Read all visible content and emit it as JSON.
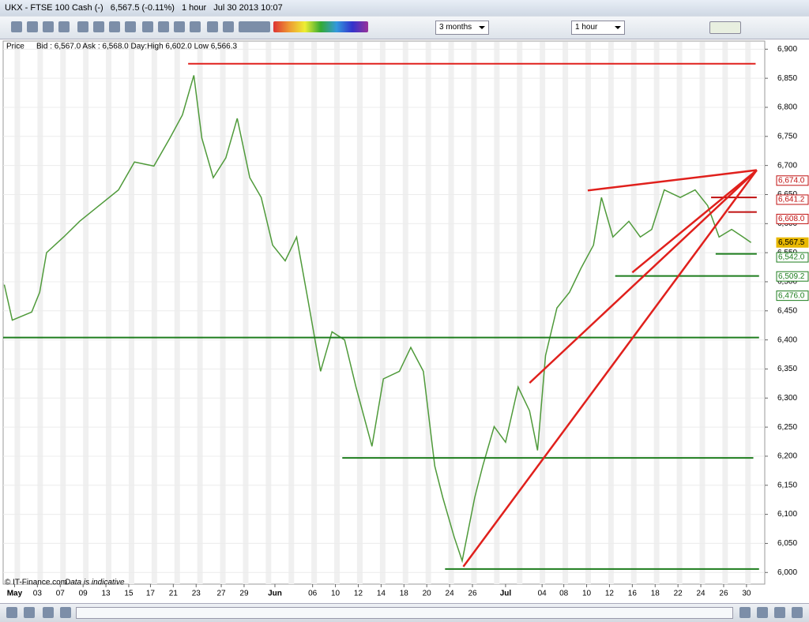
{
  "window": {
    "instrument": "UKX - FTSE 100 Cash (-)",
    "quote": "6,567.5 (-0.11%)",
    "interval": "1 hour",
    "timestamp": "Jul 30 2013 10:07",
    "range_select": "3 months",
    "interval_select": "1 hour",
    "info": "Bid : 6,567.0 Ask : 6,568.0 Day:High 6,602.0 Low 6,566.3",
    "footer": "© IT-Finance.com",
    "disclaimer": "Data is indicative"
  },
  "chart_data": {
    "type": "line",
    "x": [
      -0.9,
      -0.2,
      1.5,
      2.2,
      2.8,
      4.3,
      5.7,
      7.4,
      9.1,
      10.5,
      12.2,
      13.6,
      14.7,
      15.7,
      16.4,
      17.4,
      18.5,
      19.5,
      20.6,
      21.6,
      22.6,
      23.7,
      24.7,
      25.7,
      26.8,
      27.8,
      28.9,
      29.9,
      31.3,
      32.3,
      33.7,
      34.7,
      35.8,
      36.8,
      37.5,
      38.5,
      39.2,
      40.3,
      41.0,
      42.0,
      43.0,
      44.1,
      45.1,
      45.8,
      46.5,
      47.5,
      48.6,
      49.6,
      50.7,
      51.4,
      52.4,
      53.8,
      54.8,
      55.8,
      56.9,
      58.3,
      59.6,
      60.7,
      61.7,
      62.8,
      63.8,
      64.5
    ],
    "series": [
      {
        "name": "Price",
        "color": "#4f9a3a",
        "values": [
          6495,
          6434,
          6448,
          6482,
          6550,
          6577,
          6604,
          6631,
          6658,
          6706,
          6699,
          6747,
          6787,
          6855,
          6747,
          6679,
          6713,
          6781,
          6679,
          6645,
          6563,
          6536,
          6577,
          6468,
          6346,
          6414,
          6400,
          6319,
          6217,
          6333,
          6346,
          6387,
          6346,
          6183,
          6129,
          6061,
          6020,
          6129,
          6183,
          6251,
          6224,
          6319,
          6278,
          6210,
          6373,
          6455,
          6482,
          6523,
          6563,
          6645,
          6577,
          6604,
          6577,
          6590,
          6658,
          6645,
          6658,
          6631,
          6577,
          6590,
          6577,
          6567.5
        ]
      }
    ],
    "xlim": [
      -1.0,
      65.7
    ],
    "xticks": [
      {
        "value": 0,
        "label": "May"
      },
      {
        "value": 2.0,
        "label": "03"
      },
      {
        "value": 4.0,
        "label": "07"
      },
      {
        "value": 6.0,
        "label": "09"
      },
      {
        "value": 8.0,
        "label": "13"
      },
      {
        "value": 10.0,
        "label": "15"
      },
      {
        "value": 11.9,
        "label": "17"
      },
      {
        "value": 13.9,
        "label": "21"
      },
      {
        "value": 15.9,
        "label": "23"
      },
      {
        "value": 18.1,
        "label": "27"
      },
      {
        "value": 20.1,
        "label": "29"
      },
      {
        "value": 22.8,
        "label": "Jun"
      },
      {
        "value": 26.1,
        "label": "06"
      },
      {
        "value": 28.1,
        "label": "10"
      },
      {
        "value": 30.1,
        "label": "12"
      },
      {
        "value": 32.1,
        "label": "14"
      },
      {
        "value": 34.1,
        "label": "18"
      },
      {
        "value": 36.1,
        "label": "20"
      },
      {
        "value": 38.1,
        "label": "24"
      },
      {
        "value": 40.1,
        "label": "26"
      },
      {
        "value": 43.0,
        "label": "Jul"
      },
      {
        "value": 46.2,
        "label": "04"
      },
      {
        "value": 48.1,
        "label": "08"
      },
      {
        "value": 50.1,
        "label": "10"
      },
      {
        "value": 52.1,
        "label": "12"
      },
      {
        "value": 54.1,
        "label": "16"
      },
      {
        "value": 56.1,
        "label": "18"
      },
      {
        "value": 58.1,
        "label": "22"
      },
      {
        "value": 60.1,
        "label": "24"
      },
      {
        "value": 62.1,
        "label": "26"
      },
      {
        "value": 64.1,
        "label": "30"
      }
    ],
    "ylim": [
      5980,
      6914
    ],
    "yticks": [
      {
        "value": 6000,
        "label": "6,000"
      },
      {
        "value": 6050,
        "label": "6,050"
      },
      {
        "value": 6100,
        "label": "6,100"
      },
      {
        "value": 6150,
        "label": "6,150"
      },
      {
        "value": 6200,
        "label": "6,200"
      },
      {
        "value": 6250,
        "label": "6,250"
      },
      {
        "value": 6300,
        "label": "6,300"
      },
      {
        "value": 6350,
        "label": "6,350"
      },
      {
        "value": 6400,
        "label": "6,400"
      },
      {
        "value": 6450,
        "label": "6,450"
      },
      {
        "value": 6500,
        "label": "6,500"
      },
      {
        "value": 6550,
        "label": "6,550"
      },
      {
        "value": 6600,
        "label": "6,600"
      },
      {
        "value": 6650,
        "label": "6,650"
      },
      {
        "value": 6700,
        "label": "6,700"
      },
      {
        "value": 6750,
        "label": "6,750"
      },
      {
        "value": 6800,
        "label": "6,800"
      },
      {
        "value": 6850,
        "label": "6,850"
      },
      {
        "value": 6900,
        "label": "6,900"
      }
    ],
    "hlines": [
      {
        "value": 6875,
        "x": [
          15.2,
          64.9
        ],
        "color": "#e0201c"
      },
      {
        "value": 6404,
        "x": [
          -1.0,
          65.2
        ],
        "color": "#1d7d1d"
      },
      {
        "value": 6197,
        "x": [
          28.7,
          64.7
        ],
        "color": "#1d7d1d"
      },
      {
        "value": 6006,
        "x": [
          37.7,
          65.2
        ],
        "color": "#1d7d1d"
      },
      {
        "value": 6510,
        "x": [
          52.6,
          65.2
        ],
        "color": "#1d7d1d"
      },
      {
        "value": 6548,
        "x": [
          61.4,
          65.0
        ],
        "color": "#1d7d1d"
      },
      {
        "value": 6645,
        "x": [
          61.0,
          65.0
        ],
        "color": "#c01010"
      },
      {
        "value": 6620,
        "x": [
          62.5,
          65.0
        ],
        "color": "#c01010"
      }
    ],
    "trendlines": [
      {
        "x": [
          50.2,
          65.0
        ],
        "y": [
          6657,
          6692
        ],
        "color": "#e0201c"
      },
      {
        "x": [
          45.1,
          65.0
        ],
        "y": [
          6326,
          6692
        ],
        "color": "#e0201c"
      },
      {
        "x": [
          39.3,
          65.0
        ],
        "y": [
          6010,
          6692
        ],
        "color": "#e0201c"
      },
      {
        "x": [
          54.1,
          65.0
        ],
        "y": [
          6516,
          6692
        ],
        "color": "#e0201c"
      }
    ],
    "price_tags": [
      {
        "value": 6674.0,
        "label": "6,674.0",
        "color": "#c01010"
      },
      {
        "value": 6641.2,
        "label": "6,641.2",
        "color": "#c01010"
      },
      {
        "value": 6608.0,
        "label": "6,608.0",
        "color": "#c01010"
      },
      {
        "value": 6567.5,
        "label": "6,567.5",
        "color": "#e8b800"
      },
      {
        "value": 6542.0,
        "label": "6,542.0",
        "color": "#1d7d1d"
      },
      {
        "value": 6509.2,
        "label": "6,509.2",
        "color": "#1d7d1d"
      },
      {
        "value": 6476.0,
        "label": "6,476.0",
        "color": "#1d7d1d"
      }
    ],
    "grid": true
  }
}
